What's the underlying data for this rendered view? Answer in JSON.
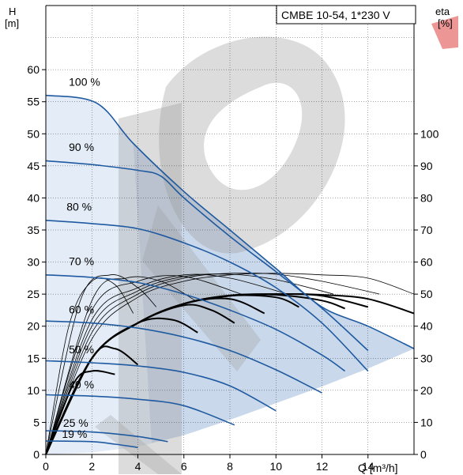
{
  "colors": {
    "curve_blue": "#1f5aa0",
    "area_light": "#e4edf7",
    "area_mid": "#c9d8ea",
    "efficiency": "#000000",
    "watermark": "#9a9a9a",
    "watermark_red": "#e05050",
    "grid": "#000000"
  },
  "chart_data": {
    "type": "line",
    "title": "CMBE 10-54, 1*230 V",
    "xlabel": "Q [m³/h]",
    "ylabel_line1": "H",
    "ylabel_line2": "[m]",
    "y2label_line1": "eta",
    "y2label_line2": "[%]",
    "xlim": [
      0,
      16
    ],
    "ylim": [
      0,
      70
    ],
    "y2lim": [
      0,
      140
    ],
    "x_ticks": [
      "0",
      "2",
      "4",
      "6",
      "8",
      "10",
      "12",
      "14"
    ],
    "y_ticks": [
      "0",
      "5",
      "10",
      "15",
      "20",
      "25",
      "30",
      "35",
      "40",
      "45",
      "50",
      "55",
      "60"
    ],
    "y2_ticks": [
      "0",
      "10",
      "20",
      "30",
      "40",
      "50",
      "60",
      "70",
      "80",
      "90",
      "100"
    ],
    "grid": true,
    "speed_labels": [
      "100 %",
      "90 %",
      "80 %",
      "70 %",
      "60 %",
      "50 %",
      "40 %",
      "25 %",
      "19 %"
    ],
    "head_curves": [
      {
        "label": "100 %",
        "speed": 1.0,
        "points": [
          [
            0,
            56
          ],
          [
            2.2,
            54.8
          ],
          [
            3.8,
            48.5
          ],
          [
            6,
            41
          ],
          [
            8,
            35
          ],
          [
            10,
            29
          ],
          [
            12,
            23
          ],
          [
            14,
            20
          ],
          [
            16,
            16.5
          ]
        ]
      },
      {
        "label": "90 %",
        "speed": 0.9,
        "points": [
          [
            0,
            45.8
          ],
          [
            2,
            45.2
          ],
          [
            4,
            44.3
          ],
          [
            5,
            43.4
          ],
          [
            6,
            40
          ],
          [
            8,
            34
          ],
          [
            10,
            28.5
          ],
          [
            12,
            22.8
          ],
          [
            14,
            16.2
          ]
        ]
      },
      {
        "label": "80 %",
        "speed": 0.8,
        "points": [
          [
            0,
            36.5
          ],
          [
            2,
            36
          ],
          [
            4,
            35.2
          ],
          [
            6,
            33
          ],
          [
            8,
            30
          ],
          [
            10,
            26
          ],
          [
            12,
            20.5
          ],
          [
            14,
            13
          ]
        ]
      },
      {
        "label": "70 %",
        "speed": 0.7,
        "points": [
          [
            0,
            28
          ],
          [
            2,
            27.6
          ],
          [
            4,
            26.8
          ],
          [
            6,
            25
          ],
          [
            8,
            22.5
          ],
          [
            10,
            19.5
          ],
          [
            12,
            15.5
          ],
          [
            13,
            13
          ]
        ]
      },
      {
        "label": "60 %",
        "speed": 0.6,
        "points": [
          [
            0,
            20.8
          ],
          [
            2,
            20.5
          ],
          [
            4,
            19.7
          ],
          [
            6,
            18.3
          ],
          [
            8,
            16.2
          ],
          [
            10,
            13.2
          ],
          [
            12,
            9.6
          ]
        ]
      },
      {
        "label": "50 %",
        "speed": 0.5,
        "points": [
          [
            0,
            14.6
          ],
          [
            2,
            14.3
          ],
          [
            4,
            13.8
          ],
          [
            6,
            12.8
          ],
          [
            8,
            10.7
          ],
          [
            10,
            6.8
          ]
        ]
      },
      {
        "label": "40 %",
        "speed": 0.4,
        "points": [
          [
            0,
            9.3
          ],
          [
            2,
            9.1
          ],
          [
            4,
            8.6
          ],
          [
            6,
            7.6
          ],
          [
            8.2,
            4.6
          ]
        ]
      },
      {
        "label": "25 %",
        "speed": 0.25,
        "points": [
          [
            0,
            3.7
          ],
          [
            2,
            3.5
          ],
          [
            4,
            2.8
          ],
          [
            5.3,
            2.0
          ]
        ]
      },
      {
        "label": "19 %",
        "speed": 0.19,
        "points": [
          [
            0,
            2.1
          ],
          [
            2,
            2.0
          ],
          [
            3,
            1.6
          ],
          [
            4,
            1.1
          ]
        ]
      }
    ],
    "efficiency_curves_note": "",
    "efficiency_curves": [
      {
        "speed": 1.0,
        "points": [
          [
            0,
            0
          ],
          [
            2,
            30
          ],
          [
            4,
            41
          ],
          [
            6,
            47
          ],
          [
            8,
            49.5
          ],
          [
            10,
            50
          ],
          [
            12,
            49.8
          ],
          [
            14,
            48.5
          ],
          [
            16,
            44
          ]
        ]
      },
      {
        "speed": 0.9,
        "points": [
          [
            0,
            0
          ],
          [
            2,
            30
          ],
          [
            4,
            41
          ],
          [
            6,
            47
          ],
          [
            8,
            49.5
          ],
          [
            10,
            50
          ],
          [
            12,
            49.5
          ],
          [
            14,
            46
          ]
        ]
      },
      {
        "speed": 0.8,
        "points": [
          [
            0,
            0
          ],
          [
            2,
            30
          ],
          [
            4,
            41
          ],
          [
            6,
            47
          ],
          [
            8,
            49.6
          ],
          [
            10,
            49.8
          ],
          [
            12,
            48
          ],
          [
            13,
            45.5
          ]
        ]
      },
      {
        "speed": 0.7,
        "points": [
          [
            0,
            0
          ],
          [
            2,
            30
          ],
          [
            4,
            41
          ],
          [
            6,
            47
          ],
          [
            8,
            49.5
          ],
          [
            10,
            49
          ],
          [
            11,
            46
          ]
        ]
      },
      {
        "speed": 0.6,
        "points": [
          [
            0,
            0
          ],
          [
            2,
            30
          ],
          [
            4,
            41
          ],
          [
            6,
            47
          ],
          [
            8,
            48.5
          ],
          [
            9.5,
            44
          ]
        ]
      },
      {
        "speed": 0.5,
        "points": [
          [
            0,
            0
          ],
          [
            2,
            30
          ],
          [
            4,
            41
          ],
          [
            6,
            46.5
          ],
          [
            7.2,
            45
          ],
          [
            8.2,
            41
          ]
        ]
      },
      {
        "speed": 0.4,
        "points": [
          [
            0,
            0
          ],
          [
            2,
            30
          ],
          [
            4,
            41
          ],
          [
            5.5,
            42
          ],
          [
            6.6,
            38
          ]
        ]
      },
      {
        "speed": 0.25,
        "points": [
          [
            0,
            0
          ],
          [
            2,
            30
          ],
          [
            3,
            33
          ],
          [
            4,
            28
          ]
        ]
      },
      {
        "speed": 0.19,
        "points": [
          [
            0,
            0
          ],
          [
            1.2,
            22
          ],
          [
            2,
            26
          ],
          [
            3,
            25
          ]
        ]
      }
    ],
    "thin_efficiency_curves": [
      {
        "points": [
          [
            0,
            0
          ],
          [
            2,
            36
          ],
          [
            4,
            49
          ],
          [
            6,
            54
          ],
          [
            8,
            56
          ],
          [
            10,
            56.5
          ],
          [
            12,
            56
          ],
          [
            14,
            55
          ],
          [
            16,
            50
          ]
        ]
      },
      {
        "points": [
          [
            0,
            0
          ],
          [
            2,
            38
          ],
          [
            4,
            50
          ],
          [
            6,
            55
          ],
          [
            8,
            56.5
          ],
          [
            10,
            56.2
          ],
          [
            12,
            54
          ],
          [
            14.5,
            50
          ]
        ]
      },
      {
        "points": [
          [
            0,
            0
          ],
          [
            2,
            40
          ],
          [
            4,
            51
          ],
          [
            6,
            55.5
          ],
          [
            8,
            56.2
          ],
          [
            10,
            54.5
          ],
          [
            12.5,
            50
          ]
        ]
      },
      {
        "points": [
          [
            0,
            0
          ],
          [
            2,
            42
          ],
          [
            4,
            52
          ],
          [
            6,
            56
          ],
          [
            8,
            55
          ],
          [
            10.5,
            50
          ]
        ]
      },
      {
        "points": [
          [
            0,
            0
          ],
          [
            2,
            45
          ],
          [
            4,
            54
          ],
          [
            6,
            55.5
          ],
          [
            8.5,
            50
          ]
        ]
      },
      {
        "points": [
          [
            0,
            0
          ],
          [
            2,
            48
          ],
          [
            3.5,
            55
          ],
          [
            5,
            54
          ],
          [
            6.5,
            48
          ]
        ]
      },
      {
        "points": [
          [
            0,
            0
          ],
          [
            1.5,
            48
          ],
          [
            2.8,
            56
          ],
          [
            4,
            52
          ],
          [
            4.8,
            46
          ]
        ]
      },
      {
        "points": [
          [
            0,
            0
          ],
          [
            1,
            40
          ],
          [
            2,
            54
          ],
          [
            3,
            53
          ],
          [
            3.8,
            44
          ]
        ]
      }
    ],
    "operating_area": {
      "upper_boundary": [
        [
          0,
          56
        ],
        [
          2.2,
          54.8
        ],
        [
          3.8,
          48.5
        ],
        [
          6,
          41
        ],
        [
          8,
          35
        ],
        [
          10,
          29
        ],
        [
          12,
          23
        ],
        [
          14,
          20
        ],
        [
          16,
          16.5
        ]
      ],
      "lower_boundary": [
        [
          16,
          16.5
        ],
        [
          14,
          13.4
        ],
        [
          12,
          10.6
        ],
        [
          10,
          8.0
        ],
        [
          8,
          5.4
        ],
        [
          6,
          3.0
        ],
        [
          4,
          1.2
        ],
        [
          2,
          0.3
        ],
        [
          0,
          0
        ]
      ]
    }
  }
}
